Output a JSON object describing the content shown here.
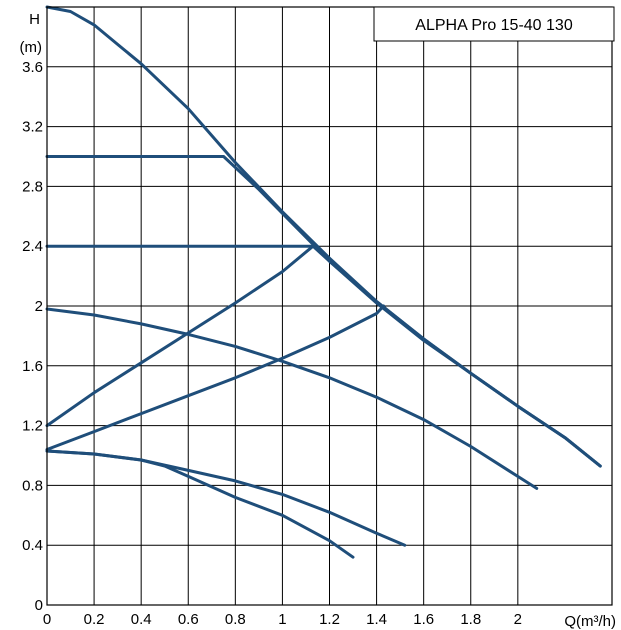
{
  "chart_data": {
    "type": "line",
    "title": "ALPHA Pro 15-40 130",
    "xlabel": "Q(m³/h)",
    "ylabel_line1": "H",
    "ylabel_line2": "(m)",
    "xlim": [
      0,
      2.4
    ],
    "ylim": [
      0,
      4.0
    ],
    "x_ticks": [
      "0",
      "0.2",
      "0.4",
      "0.6",
      "0.8",
      "1",
      "1.2",
      "1.4",
      "1.6",
      "1.8",
      "2"
    ],
    "x_tick_values": [
      0,
      0.2,
      0.4,
      0.6,
      0.8,
      1.0,
      1.2,
      1.4,
      1.6,
      1.8,
      2.0
    ],
    "y_ticks": [
      "0",
      "0.4",
      "0.8",
      "1.2",
      "1.6",
      "2",
      "2.4",
      "2.8",
      "3.2",
      "3.6"
    ],
    "y_tick_values": [
      0,
      0.4,
      0.8,
      1.2,
      1.6,
      2.0,
      2.4,
      2.8,
      3.2,
      3.6
    ],
    "grid": true,
    "legend": "top-right",
    "line_color": "#1f4e7a",
    "series": [
      {
        "x": [
          0,
          0.1,
          0.2,
          0.3,
          0.4,
          0.6,
          0.8,
          1.0,
          1.2,
          1.4,
          1.6,
          1.8,
          2.0,
          2.2,
          2.35
        ],
        "y": [
          4.0,
          3.97,
          3.88,
          3.75,
          3.62,
          3.32,
          2.96,
          2.63,
          2.32,
          2.03,
          1.78,
          1.55,
          1.33,
          1.12,
          0.93
        ]
      },
      {
        "x": [
          0,
          0.75,
          0.9,
          1.0,
          1.1,
          1.2,
          1.4,
          1.6,
          1.8,
          2.0,
          2.2,
          2.35
        ],
        "y": [
          3.0,
          3.0,
          2.78,
          2.62,
          2.46,
          2.3,
          2.02,
          1.77,
          1.55,
          1.33,
          1.12,
          0.93
        ]
      },
      {
        "x": [
          0,
          1.13,
          1.2,
          1.4,
          1.6,
          1.8,
          2.0,
          2.2,
          2.35
        ],
        "y": [
          2.4,
          2.4,
          2.3,
          2.03,
          1.78,
          1.55,
          1.33,
          1.12,
          0.93
        ]
      },
      {
        "x": [
          0,
          0.2,
          0.4,
          0.6,
          0.8,
          1.0,
          1.13
        ],
        "y": [
          1.2,
          1.42,
          1.62,
          1.82,
          2.02,
          2.23,
          2.4
        ]
      },
      {
        "x": [
          0,
          0.2,
          0.4,
          0.6,
          0.8,
          1.0,
          1.2,
          1.4,
          1.43
        ],
        "y": [
          1.04,
          1.16,
          1.28,
          1.4,
          1.52,
          1.65,
          1.79,
          1.95,
          2.0
        ]
      },
      {
        "x": [
          0,
          0.2,
          0.4,
          0.6,
          0.8,
          1.0,
          1.2,
          1.4,
          1.6,
          1.8,
          2.0,
          2.08
        ],
        "y": [
          1.98,
          1.94,
          1.88,
          1.81,
          1.73,
          1.63,
          1.52,
          1.39,
          1.24,
          1.06,
          0.86,
          0.78
        ]
      },
      {
        "x": [
          0,
          0.2,
          0.4,
          0.6,
          0.8,
          1.0,
          1.2,
          1.4,
          1.52
        ],
        "y": [
          1.03,
          1.01,
          0.97,
          0.9,
          0.83,
          0.74,
          0.62,
          0.48,
          0.4
        ]
      },
      {
        "x": [
          0,
          0.2,
          0.4,
          0.5,
          0.6,
          0.8,
          1.0,
          1.2,
          1.3
        ],
        "y": [
          1.03,
          1.01,
          0.97,
          0.93,
          0.86,
          0.72,
          0.6,
          0.43,
          0.32
        ]
      }
    ]
  }
}
